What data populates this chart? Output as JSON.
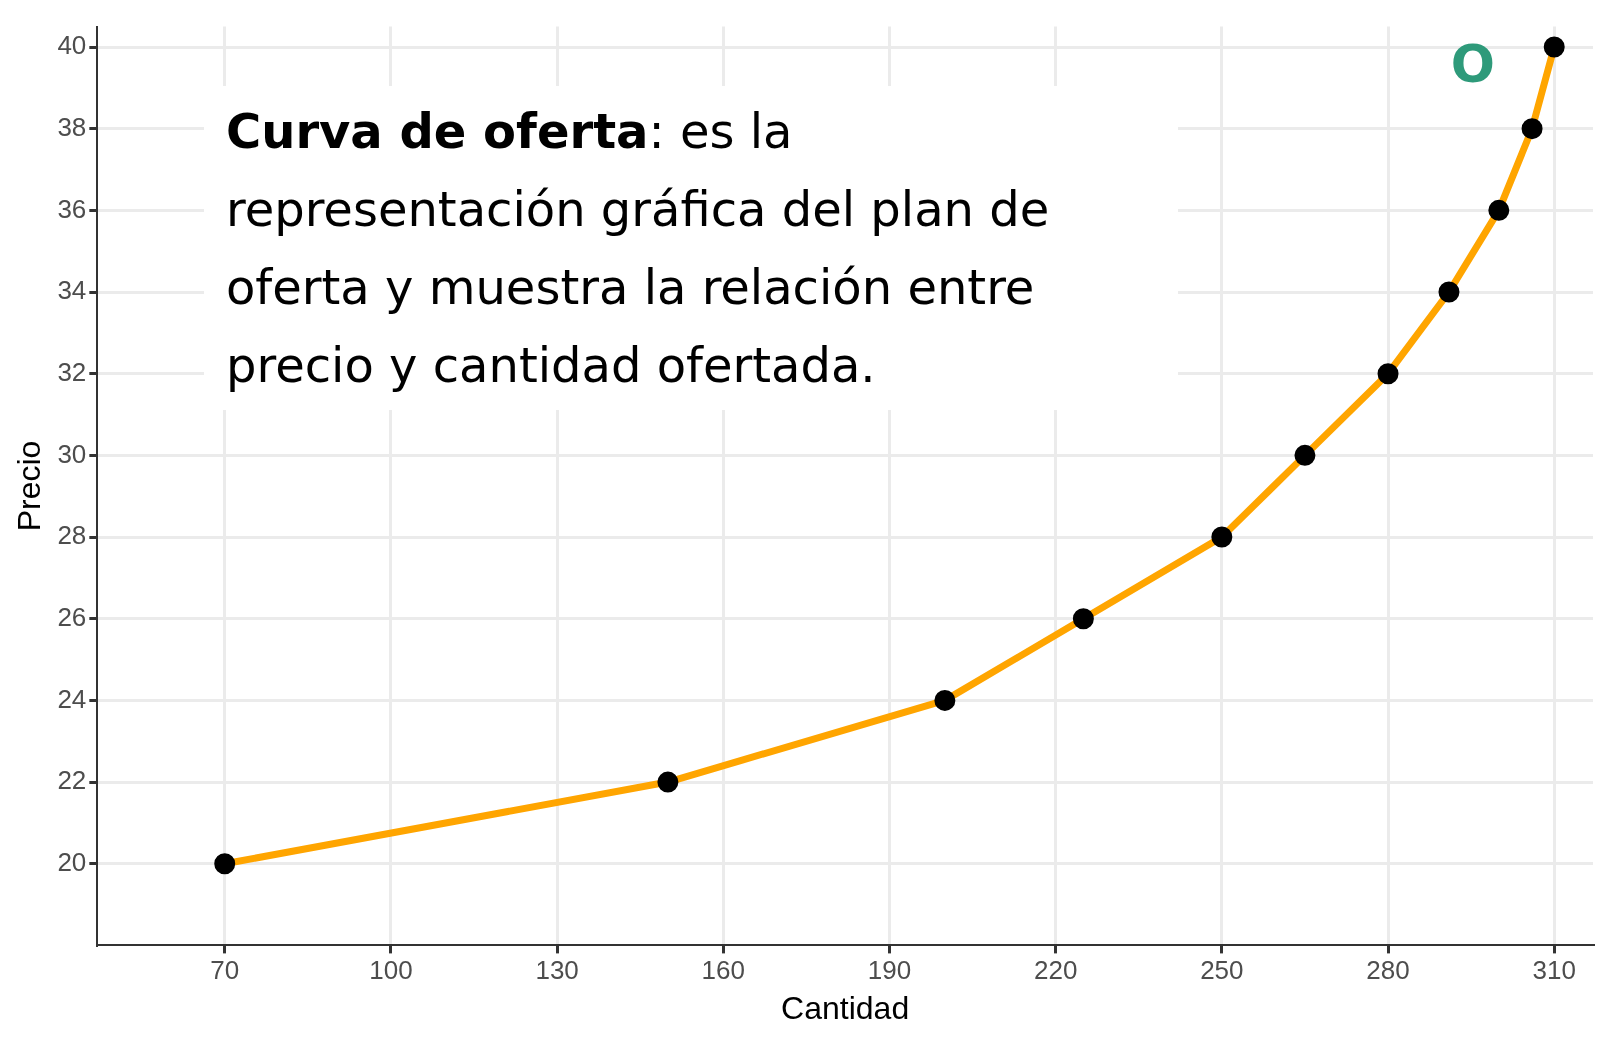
{
  "chart_data": {
    "type": "line",
    "xlabel": "Cantidad",
    "ylabel": "Precio",
    "x": [
      70,
      150,
      200,
      225,
      250,
      265,
      280,
      291,
      300,
      306,
      310
    ],
    "series": [
      {
        "color": "#ffa500",
        "values": [
          20,
          22,
          24,
          26,
          28,
          30,
          32,
          34,
          36,
          38,
          40
        ]
      }
    ],
    "xlim": [
      47,
      317
    ],
    "xticks": [
      70,
      100,
      130,
      160,
      190,
      220,
      250,
      280,
      310
    ],
    "ylim": [
      18,
      40.5
    ],
    "yticks": [
      20,
      22,
      24,
      26,
      28,
      30,
      32,
      34,
      36,
      38,
      40
    ],
    "grid": true,
    "legend": false,
    "marker": "circle",
    "line_style": "solid",
    "annotations": [
      "Curva de oferta: es la representación gráfica del plan de oferta y muestra la relación entre precio y cantidad ofertada.",
      "O"
    ]
  }
}
